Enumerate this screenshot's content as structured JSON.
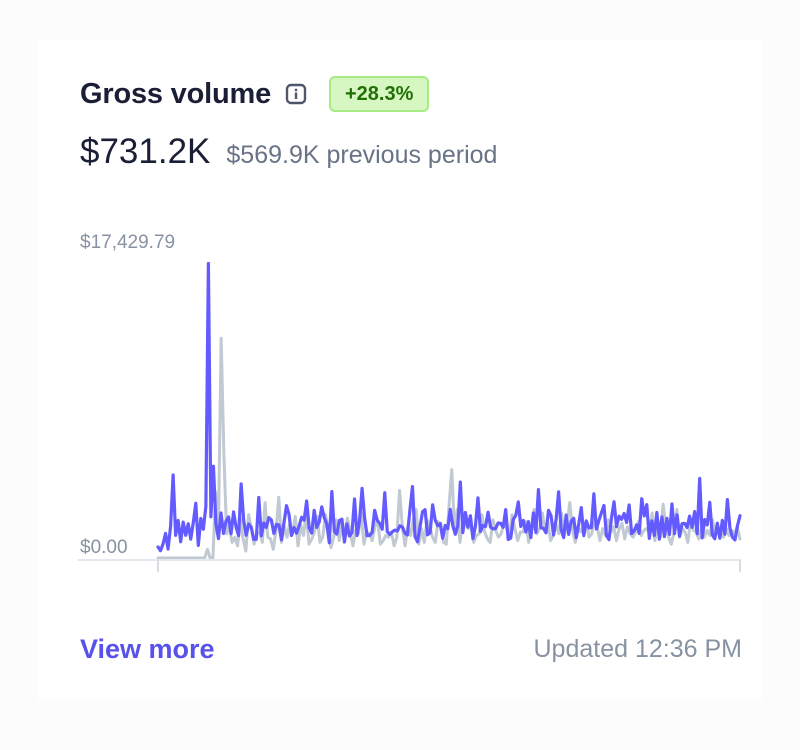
{
  "card": {
    "title": "Gross volume",
    "info_icon": "info-icon",
    "change_badge": "+28.3%",
    "current_value": "$731.2K",
    "previous_value": "$569.9K previous period",
    "view_more": "View more",
    "updated_prefix": "Updated",
    "updated_time": "12:36 PM"
  },
  "colors": {
    "current_series": "#635bff",
    "previous_series": "#c1c9d2",
    "badge_bg": "#d7f7c2",
    "badge_text": "#217005",
    "link": "#5851ea"
  },
  "chart_data": {
    "type": "line",
    "title": "",
    "xlabel": "",
    "ylabel": "",
    "ylim": [
      0,
      17429.79
    ],
    "y_tick_labels": [
      "$17,429.79",
      "$0.00"
    ],
    "grid": false,
    "series": [
      {
        "values": [
          640,
          420,
          810,
          1420,
          520,
          1830,
          4790,
          1310,
          2170,
          940,
          2070,
          1310,
          1980,
          1090,
          2040,
          3160,
          730,
          2280,
          1660,
          2990,
          17000,
          2380,
          5300,
          1960,
          1120,
          2600,
          1420,
          2140,
          2370,
          1400,
          2660,
          1780,
          1290,
          4270,
          2170,
          1310,
          1960,
          1780,
          1070,
          1080,
          3490,
          1280,
          2020,
          1760,
          2330,
          2190,
          1420,
          1940,
          1910,
          1050,
          2030,
          3020,
          2520,
          1300,
          1760,
          1430,
          1840,
          2350,
          2180,
          3290,
          1740,
          1440,
          2750,
          1770,
          2080,
          2950,
          2330,
          1950,
          880,
          3830,
          1530,
          1380,
          2160,
          2240,
          920,
          1970,
          1270,
          1470,
          3410,
          1300,
          2150,
          4020,
          2310,
          1290,
          1300,
          1480,
          2750,
          2170,
          2000,
          1660,
          3770,
          1520,
          1360,
          1510,
          1610,
          1560,
          1860,
          1790,
          1440,
          1330,
          2790,
          4120,
          1250,
          930,
          1810,
          2670,
          2790,
          1340,
          1450,
          3070,
          2200,
          1860,
          1980,
          1140,
          1880,
          1690,
          2810,
          1870,
          1370,
          1850,
          4380,
          1470,
          2630,
          1780,
          2440,
          1120,
          1860,
          3470,
          1530,
          1880,
          1820,
          2640,
          1780,
          1680,
          1700,
          2020,
          2000,
          1770,
          2790,
          1070,
          1150,
          2230,
          2450,
          3240,
          1820,
          2170,
          1500,
          2100,
          1180,
          2600,
          1480,
          3950,
          1740,
          1710,
          1450,
          2750,
          2440,
          1330,
          2210,
          3820,
          1640,
          1180,
          2480,
          1360,
          2140,
          2290,
          1170,
          1970,
          2910,
          1290,
          2140,
          1740,
          1750,
          3700,
          1670,
          2170,
          2610,
          3030,
          1290,
          1060,
          2320,
          3250,
          1800,
          2420,
          2230,
          2570,
          2050,
          3060,
          1410,
          1570,
          1920,
          1420,
          3420,
          2430,
          3080,
          1130,
          2140,
          1300,
          2630,
          1090,
          2370,
          1240,
          2290,
          1360,
          3120,
          1410,
          2490,
          1260,
          1980,
          2000,
          1760,
          2420,
          1770,
          2680,
          1400,
          4590,
          1160,
          2220,
          1910,
          3210,
          1330,
          1110,
          2010,
          1140,
          2170,
          1370,
          3370,
          1730,
          1200,
          1040,
          1870,
          2440
        ]
      },
      {
        "values": [
          0,
          0,
          0,
          0,
          0,
          0,
          0,
          0,
          0,
          0,
          0,
          0,
          0,
          0,
          0,
          0,
          0,
          0,
          500,
          0,
          0,
          3800,
          1500,
          12680,
          6000,
          1400,
          1800,
          900,
          1200,
          700,
          2300,
          1100,
          400,
          2500,
          1700,
          800,
          1400,
          1500,
          900,
          3200,
          1200,
          1100,
          500,
          1600,
          3500,
          900,
          1800,
          1200,
          2000,
          1400,
          2400,
          700,
          1900,
          1300,
          2600,
          800,
          1100,
          1500,
          2400,
          900,
          1200,
          2500,
          1700,
          600,
          1200,
          2200,
          1000,
          1900,
          1400,
          2300,
          1500,
          700,
          1600,
          1400,
          2600,
          800,
          1500,
          1400,
          1000,
          1800,
          2200,
          800,
          1000,
          1300,
          1200,
          1500,
          700,
          1200,
          3900,
          1800,
          700,
          1800,
          1300,
          2200,
          2800,
          800,
          1700,
          900,
          2200,
          1800,
          1200,
          900,
          2100,
          2000,
          900,
          800,
          3000,
          5100,
          1700,
          2800,
          900,
          2100,
          2000,
          1700,
          1800,
          900,
          1300,
          1400,
          2500,
          1500,
          1100,
          900,
          2200,
          1600,
          1200,
          1400,
          2000,
          1700,
          1300,
          2500,
          1700,
          1000,
          1500,
          1500,
          2100,
          900,
          1800,
          2800,
          1400,
          1700,
          2600,
          1600,
          2100,
          1000,
          1300,
          1900,
          1400,
          2600,
          1300,
          2000,
          3200,
          1600,
          900,
          1800,
          1500,
          1900,
          2100,
          1200,
          1400,
          2400,
          1800,
          1000,
          1700,
          1300,
          2200,
          1500,
          1800,
          1000,
          1700,
          2000,
          1100,
          1800,
          1400,
          1200,
          1500,
          2100,
          1300,
          1600,
          1700,
          1400,
          2600,
          1000,
          2200,
          1200,
          3100,
          1800,
          1200,
          800,
          1500,
          2800,
          1200,
          1700,
          1500,
          900,
          2100,
          1600,
          1500,
          1100,
          1800,
          1200,
          1600,
          1300,
          2200,
          1300,
          1500,
          1500,
          1200,
          1700,
          1300,
          1600,
          1400,
          1800,
          1100
        ]
      }
    ]
  }
}
